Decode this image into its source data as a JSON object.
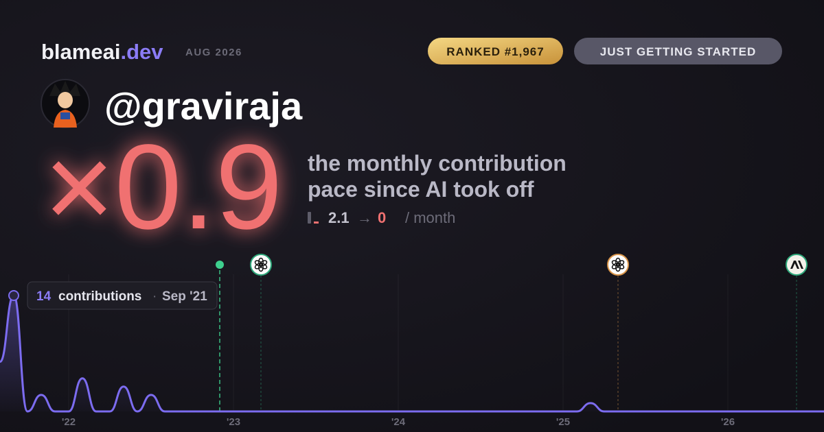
{
  "header": {
    "brand": "blameai",
    "brand_tld": ".dev",
    "date": "AUG 2026",
    "rank_badge": "RANKED #1,967",
    "status_badge": "JUST GETTING STARTED",
    "username": "@graviraja"
  },
  "headline": {
    "multiplier": "×0.9",
    "description": [
      "the monthly contribution",
      "pace since AI took off"
    ],
    "pace": {
      "before": "2.1",
      "arrow": "→",
      "after": "0",
      "unit": "/ month"
    }
  },
  "tooltip": {
    "unit": "contributions",
    "separator": "·",
    "label": "Sep '21"
  },
  "chart_data": {
    "type": "line",
    "color": "#7c6cf0",
    "x": [
      "2021-08",
      "2021-09",
      "2021-10",
      "2021-11",
      "2021-12",
      "2022-01",
      "2022-02",
      "2022-03",
      "2022-04",
      "2022-05",
      "2022-06",
      "2022-07",
      "2022-08",
      "2022-09",
      "2022-10",
      "2022-11",
      "2022-12",
      "2023-01",
      "2023-02",
      "2023-03",
      "2023-04",
      "2023-05",
      "2023-06",
      "2023-07",
      "2023-08",
      "2023-09",
      "2023-10",
      "2023-11",
      "2023-12",
      "2024-01",
      "2024-02",
      "2024-03",
      "2024-04",
      "2024-05",
      "2024-06",
      "2024-07",
      "2024-08",
      "2024-09",
      "2024-10",
      "2024-11",
      "2024-12",
      "2025-01",
      "2025-02",
      "2025-03",
      "2025-04",
      "2025-05",
      "2025-06",
      "2025-07",
      "2025-08",
      "2025-09",
      "2025-10",
      "2025-11",
      "2025-12",
      "2026-01",
      "2026-02",
      "2026-03",
      "2026-04",
      "2026-05",
      "2026-06",
      "2026-07",
      "2026-08"
    ],
    "values": [
      6,
      14,
      0,
      2,
      0,
      0,
      4,
      0,
      0,
      3,
      0,
      2,
      0,
      0,
      0,
      0,
      0,
      0,
      0,
      0,
      0,
      0,
      0,
      0,
      0,
      0,
      0,
      0,
      0,
      0,
      0,
      0,
      0,
      0,
      0,
      0,
      0,
      0,
      0,
      0,
      0,
      0,
      0,
      1,
      0,
      0,
      0,
      0,
      0,
      0,
      0,
      0,
      0,
      0,
      0,
      0,
      0,
      0,
      0,
      0,
      0
    ],
    "xlim": [
      "2021-08",
      "2026-08"
    ],
    "ylim": [
      0,
      14
    ],
    "xticks": [
      {
        "value": "2022-01",
        "label": "'22"
      },
      {
        "value": "2023-01",
        "label": "'23"
      },
      {
        "value": "2024-01",
        "label": "'24"
      },
      {
        "value": "2025-01",
        "label": "'25"
      },
      {
        "value": "2026-01",
        "label": "'26"
      }
    ],
    "grid": true,
    "events": [
      {
        "x": "2022-12",
        "color": "#3ecf8e"
      },
      {
        "x": "2023-03",
        "color": "#2ea77a"
      },
      {
        "x": "2025-05",
        "color": "#d9954a"
      },
      {
        "x": "2026-06",
        "color": "#2ea77a"
      }
    ]
  }
}
